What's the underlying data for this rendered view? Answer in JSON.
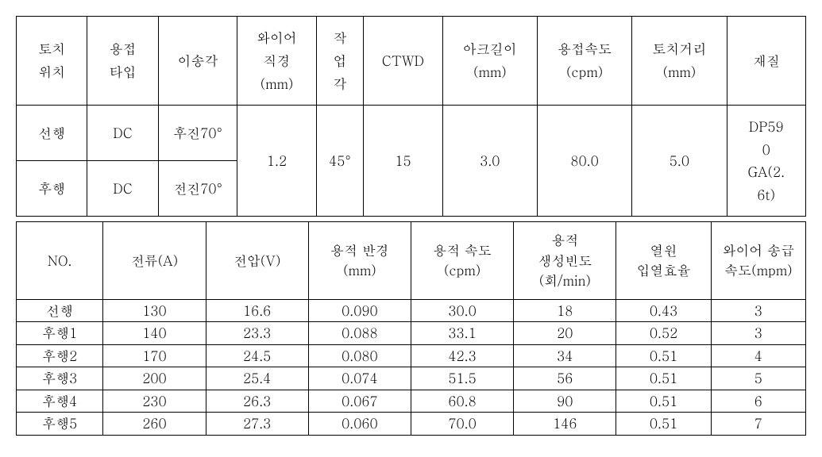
{
  "table1": {
    "headers": [
      "토치\n위치",
      "용접\n타입",
      "이송각",
      "와이어\n직경\n(mm)",
      "작\n업\n각",
      "CTWD",
      "아크길이\n(mm)",
      "용접속도\n(cpm)",
      "토치거리\n(mm)",
      "재질"
    ],
    "row1": {
      "position": "선행",
      "type": "DC",
      "angle": "후진70°"
    },
    "row2": {
      "position": "후행",
      "type": "DC",
      "angle": "전진70°"
    },
    "merged": {
      "wire_dia": "1.2",
      "work_angle": "45°",
      "ctwd": "15",
      "arc_length": "3.0",
      "weld_speed": "80.0",
      "torch_dist": "5.0",
      "material": "DP59\n0\nGA(2.\n6t)"
    },
    "col_widths": [
      "9%",
      "9%",
      "10%",
      "10%",
      "6%",
      "10%",
      "12%",
      "12%",
      "12%",
      "10%"
    ]
  },
  "table2": {
    "headers": [
      "NO.",
      "전류(A)",
      "전압(V)",
      "용적 반경\n(mm)",
      "용적 속도\n(cpm)",
      "용적\n생성빈도\n(회/min)",
      "열원\n입열효율",
      "와이어 송급\n속도(mpm)"
    ],
    "rows": [
      [
        "선행",
        "130",
        "16.6",
        "0.090",
        "30.0",
        "18",
        "0.43",
        "3"
      ],
      [
        "후행1",
        "140",
        "23.3",
        "0.088",
        "33.1",
        "20",
        "0.52",
        "3"
      ],
      [
        "후행2",
        "170",
        "24.5",
        "0.080",
        "42.3",
        "34",
        "0.51",
        "4"
      ],
      [
        "후행3",
        "200",
        "25.4",
        "0.074",
        "51.5",
        "56",
        "0.51",
        "5"
      ],
      [
        "후행4",
        "230",
        "26.3",
        "0.067",
        "60.8",
        "90",
        "0.51",
        "6"
      ],
      [
        "후행5",
        "260",
        "27.3",
        "0.060",
        "70.0",
        "146",
        "0.51",
        "7"
      ]
    ],
    "col_widths": [
      "11%",
      "13%",
      "13%",
      "13%",
      "13%",
      "13%",
      "12%",
      "12%"
    ]
  },
  "styling": {
    "background_color": "#ffffff",
    "text_color": "#000000",
    "border_color": "#000000",
    "font_family": "Malgun Gothic, Batang, serif",
    "header_fontsize": 17,
    "cell_fontsize": 17
  }
}
